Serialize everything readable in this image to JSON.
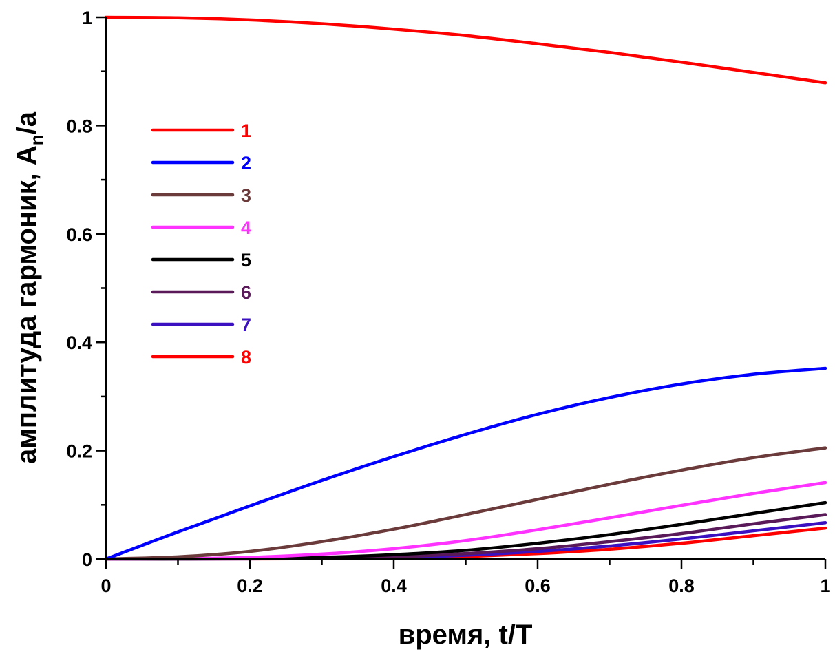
{
  "chart_data": {
    "type": "line",
    "xlabel": "время, t/T",
    "ylabel": "амплитуда гармоник, A",
    "ylabel_sub": "n",
    "ylabel_tail": "/a",
    "xlim": [
      0,
      1
    ],
    "ylim": [
      0,
      1
    ],
    "xticks": [
      "0",
      "0.2",
      "0.4",
      "0.6",
      "0.8",
      "1"
    ],
    "yticks": [
      "0",
      "0.2",
      "0.4",
      "0.6",
      "0.8",
      "1"
    ],
    "legend_position": "upper-left",
    "x": [
      0,
      0.1,
      0.2,
      0.3,
      0.4,
      0.5,
      0.6,
      0.7,
      0.8,
      0.9,
      1.0
    ],
    "series": [
      {
        "name": "1",
        "color": "#ff0000",
        "values": [
          1.0,
          0.999,
          0.995,
          0.988,
          0.978,
          0.966,
          0.951,
          0.935,
          0.917,
          0.898,
          0.879
        ]
      },
      {
        "name": "2",
        "color": "#0000ff",
        "values": [
          0.0,
          0.05,
          0.098,
          0.145,
          0.189,
          0.23,
          0.267,
          0.298,
          0.323,
          0.341,
          0.352
        ]
      },
      {
        "name": "3",
        "color": "#6b3a3a",
        "values": [
          0.0,
          0.004,
          0.014,
          0.032,
          0.055,
          0.082,
          0.11,
          0.138,
          0.164,
          0.187,
          0.205
        ]
      },
      {
        "name": "4",
        "color": "#ff33ff",
        "values": [
          0.0,
          0.0005,
          0.003,
          0.009,
          0.019,
          0.034,
          0.054,
          0.076,
          0.099,
          0.121,
          0.141
        ]
      },
      {
        "name": "5",
        "color": "#000000",
        "values": [
          0.0,
          0.0001,
          0.0008,
          0.003,
          0.008,
          0.016,
          0.029,
          0.045,
          0.064,
          0.084,
          0.104
        ]
      },
      {
        "name": "6",
        "color": "#5a1a5a",
        "values": [
          0.0,
          0.0001,
          0.0004,
          0.0015,
          0.004,
          0.01,
          0.019,
          0.032,
          0.047,
          0.065,
          0.082
        ]
      },
      {
        "name": "7",
        "color": "#3a10c0",
        "values": [
          0.0,
          0.0,
          0.0002,
          0.0008,
          0.0025,
          0.007,
          0.014,
          0.024,
          0.037,
          0.052,
          0.067
        ]
      },
      {
        "name": "8",
        "color": "#ff0000",
        "values": [
          0.0,
          0.0,
          0.0001,
          0.0005,
          0.0015,
          0.0045,
          0.01,
          0.018,
          0.029,
          0.043,
          0.057
        ]
      }
    ],
    "legend_label_colors": [
      "#ff0000",
      "#0000ff",
      "#6b3a3a",
      "#ff33ff",
      "#000000",
      "#5a1a5a",
      "#3a10c0",
      "#ff0000"
    ]
  }
}
